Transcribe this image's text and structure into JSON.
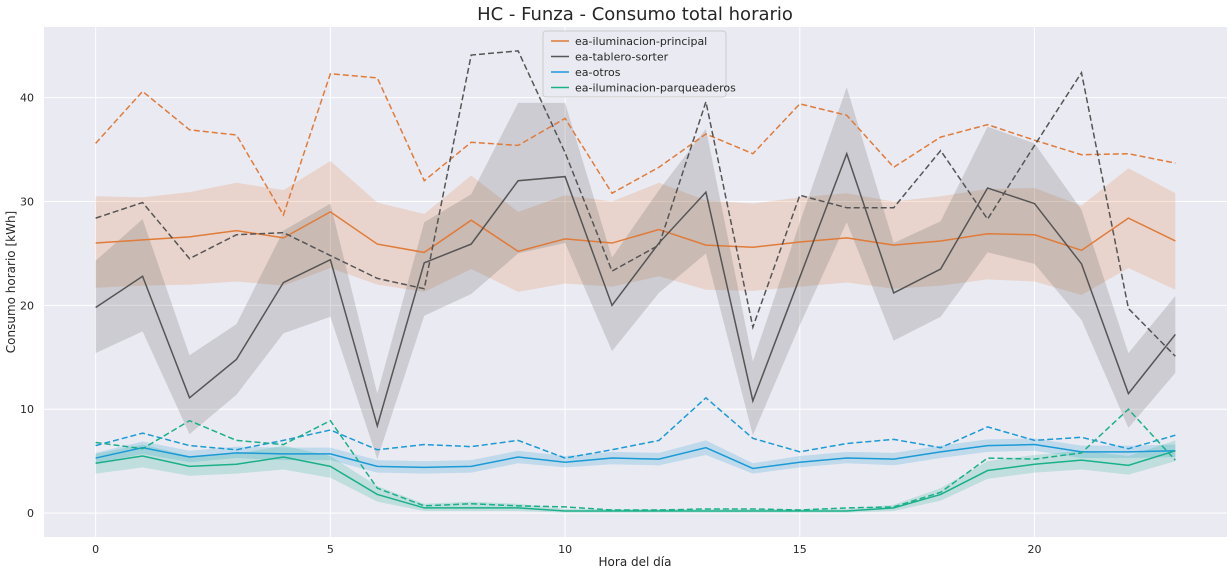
{
  "chart_data": {
    "type": "line",
    "title": "HC - Funza - Consumo total horario",
    "xlabel": "Hora del día",
    "ylabel": "Consumo horario [kWh]",
    "xlim": [
      -1.1,
      24.1
    ],
    "ylim": [
      -2.3,
      46.8
    ],
    "xticks": [
      0,
      5,
      10,
      15,
      20
    ],
    "yticks": [
      0,
      10,
      20,
      30,
      40
    ],
    "grid": true,
    "legend_position": "top-center",
    "background": "#eaeaf2",
    "x": [
      0,
      1,
      2,
      3,
      4,
      5,
      6,
      7,
      8,
      9,
      10,
      11,
      12,
      13,
      14,
      15,
      16,
      17,
      18,
      19,
      20,
      21,
      22,
      23
    ],
    "series": [
      {
        "name": "ea-iluminacion-principal",
        "color": "#e07b39",
        "mean": [
          26.0,
          26.3,
          26.6,
          27.2,
          26.5,
          29.0,
          25.9,
          25.1,
          28.2,
          25.2,
          26.4,
          26.0,
          27.3,
          25.8,
          25.6,
          26.1,
          26.5,
          25.8,
          26.2,
          26.9,
          26.8,
          25.3,
          28.4,
          26.2
        ],
        "lower": [
          21.7,
          21.9,
          22.0,
          22.3,
          21.9,
          23.6,
          22.0,
          21.3,
          23.5,
          21.3,
          22.1,
          21.8,
          22.8,
          21.5,
          21.4,
          21.8,
          22.2,
          21.6,
          21.9,
          22.5,
          22.3,
          21.0,
          23.6,
          21.5
        ],
        "upper": [
          30.5,
          30.4,
          30.9,
          31.8,
          31.1,
          33.9,
          29.9,
          28.8,
          32.5,
          29.0,
          30.6,
          30.0,
          31.8,
          30.1,
          29.8,
          30.4,
          30.8,
          30.0,
          30.5,
          31.2,
          31.3,
          29.6,
          33.2,
          30.8
        ],
        "reference": [
          35.6,
          40.6,
          36.9,
          36.4,
          28.7,
          42.3,
          41.9,
          32.0,
          35.7,
          35.4,
          38.0,
          30.8,
          33.3,
          36.5,
          34.6,
          39.4,
          38.3,
          33.3,
          36.2,
          37.4,
          35.9,
          34.5,
          34.6,
          33.7
        ]
      },
      {
        "name": "ea-tablero-sorter",
        "color": "#555555",
        "mean": [
          19.8,
          22.8,
          11.1,
          14.8,
          22.2,
          24.4,
          8.4,
          24.1,
          25.9,
          32.0,
          32.4,
          20.0,
          26.0,
          30.9,
          10.8,
          22.7,
          34.6,
          21.2,
          23.5,
          31.3,
          29.8,
          24.0,
          11.5,
          17.2
        ],
        "lower": [
          15.4,
          17.5,
          7.6,
          11.4,
          17.3,
          18.9,
          5.2,
          19.0,
          21.1,
          25.0,
          26.0,
          15.6,
          21.2,
          25.0,
          7.5,
          18.1,
          28.0,
          16.6,
          18.9,
          25.1,
          24.0,
          18.6,
          8.2,
          13.5
        ],
        "upper": [
          24.3,
          28.3,
          15.2,
          18.2,
          27.2,
          29.8,
          11.5,
          28.0,
          30.7,
          39.5,
          39.5,
          24.6,
          31.1,
          37.0,
          14.6,
          28.0,
          41.0,
          26.0,
          28.1,
          37.2,
          35.6,
          29.2,
          15.4,
          20.9
        ],
        "reference": [
          28.4,
          29.9,
          24.5,
          26.8,
          27.0,
          24.8,
          22.6,
          21.6,
          44.1,
          44.5,
          34.7,
          23.3,
          25.8,
          39.6,
          17.9,
          30.6,
          29.4,
          29.4,
          34.9,
          28.3,
          35.4,
          42.4,
          19.7,
          15.1
        ]
      },
      {
        "name": "ea-otros",
        "color": "#1b9ad6",
        "mean": [
          5.3,
          6.3,
          5.4,
          5.8,
          5.7,
          5.7,
          4.5,
          4.4,
          4.5,
          5.4,
          4.9,
          5.3,
          5.2,
          6.3,
          4.3,
          4.9,
          5.3,
          5.2,
          5.9,
          6.5,
          6.6,
          5.9,
          5.9,
          6.0
        ],
        "lower": [
          4.8,
          5.7,
          4.9,
          5.3,
          5.1,
          5.1,
          3.9,
          3.8,
          3.9,
          4.8,
          4.4,
          4.7,
          4.6,
          5.6,
          3.8,
          4.4,
          4.8,
          4.6,
          5.3,
          5.9,
          6.0,
          5.3,
          5.3,
          5.4
        ],
        "upper": [
          5.8,
          6.9,
          6.0,
          6.4,
          6.3,
          6.3,
          5.1,
          5.0,
          5.1,
          6.0,
          5.5,
          5.9,
          5.8,
          7.0,
          4.8,
          5.5,
          5.9,
          5.8,
          6.5,
          7.1,
          7.2,
          6.5,
          6.5,
          6.6
        ],
        "reference": [
          6.5,
          7.7,
          6.5,
          6.1,
          7.0,
          8.0,
          6.1,
          6.6,
          6.4,
          7.0,
          5.3,
          6.1,
          7.0,
          11.1,
          7.2,
          5.9,
          6.7,
          7.1,
          6.3,
          8.3,
          7.0,
          7.3,
          6.2,
          7.5
        ]
      },
      {
        "name": "ea-iluminacion-parqueaderos",
        "color": "#1ab08a",
        "mean": [
          4.8,
          5.5,
          4.5,
          4.7,
          5.4,
          4.5,
          1.8,
          0.5,
          0.5,
          0.5,
          0.2,
          0.2,
          0.2,
          0.2,
          0.2,
          0.2,
          0.2,
          0.5,
          1.8,
          4.1,
          4.7,
          5.1,
          4.6,
          6.0
        ],
        "lower": [
          3.8,
          4.4,
          3.6,
          3.8,
          4.2,
          3.4,
          1.1,
          0.2,
          0.2,
          0.2,
          0.05,
          0.05,
          0.05,
          0.05,
          0.05,
          0.05,
          0.05,
          0.2,
          1.2,
          3.3,
          3.9,
          4.2,
          3.7,
          5.0
        ],
        "upper": [
          5.7,
          6.6,
          5.5,
          5.7,
          6.5,
          5.5,
          2.6,
          0.9,
          1.1,
          0.9,
          0.4,
          0.4,
          0.4,
          0.4,
          0.4,
          0.4,
          0.4,
          0.8,
          2.4,
          5.0,
          5.6,
          6.0,
          5.5,
          7.0
        ],
        "reference": [
          6.8,
          6.2,
          8.9,
          7.0,
          6.6,
          8.9,
          2.4,
          0.7,
          0.9,
          0.7,
          0.6,
          0.3,
          0.3,
          0.4,
          0.4,
          0.3,
          0.5,
          0.6,
          2.0,
          5.3,
          5.2,
          5.8,
          10.0,
          5.1
        ]
      }
    ]
  }
}
